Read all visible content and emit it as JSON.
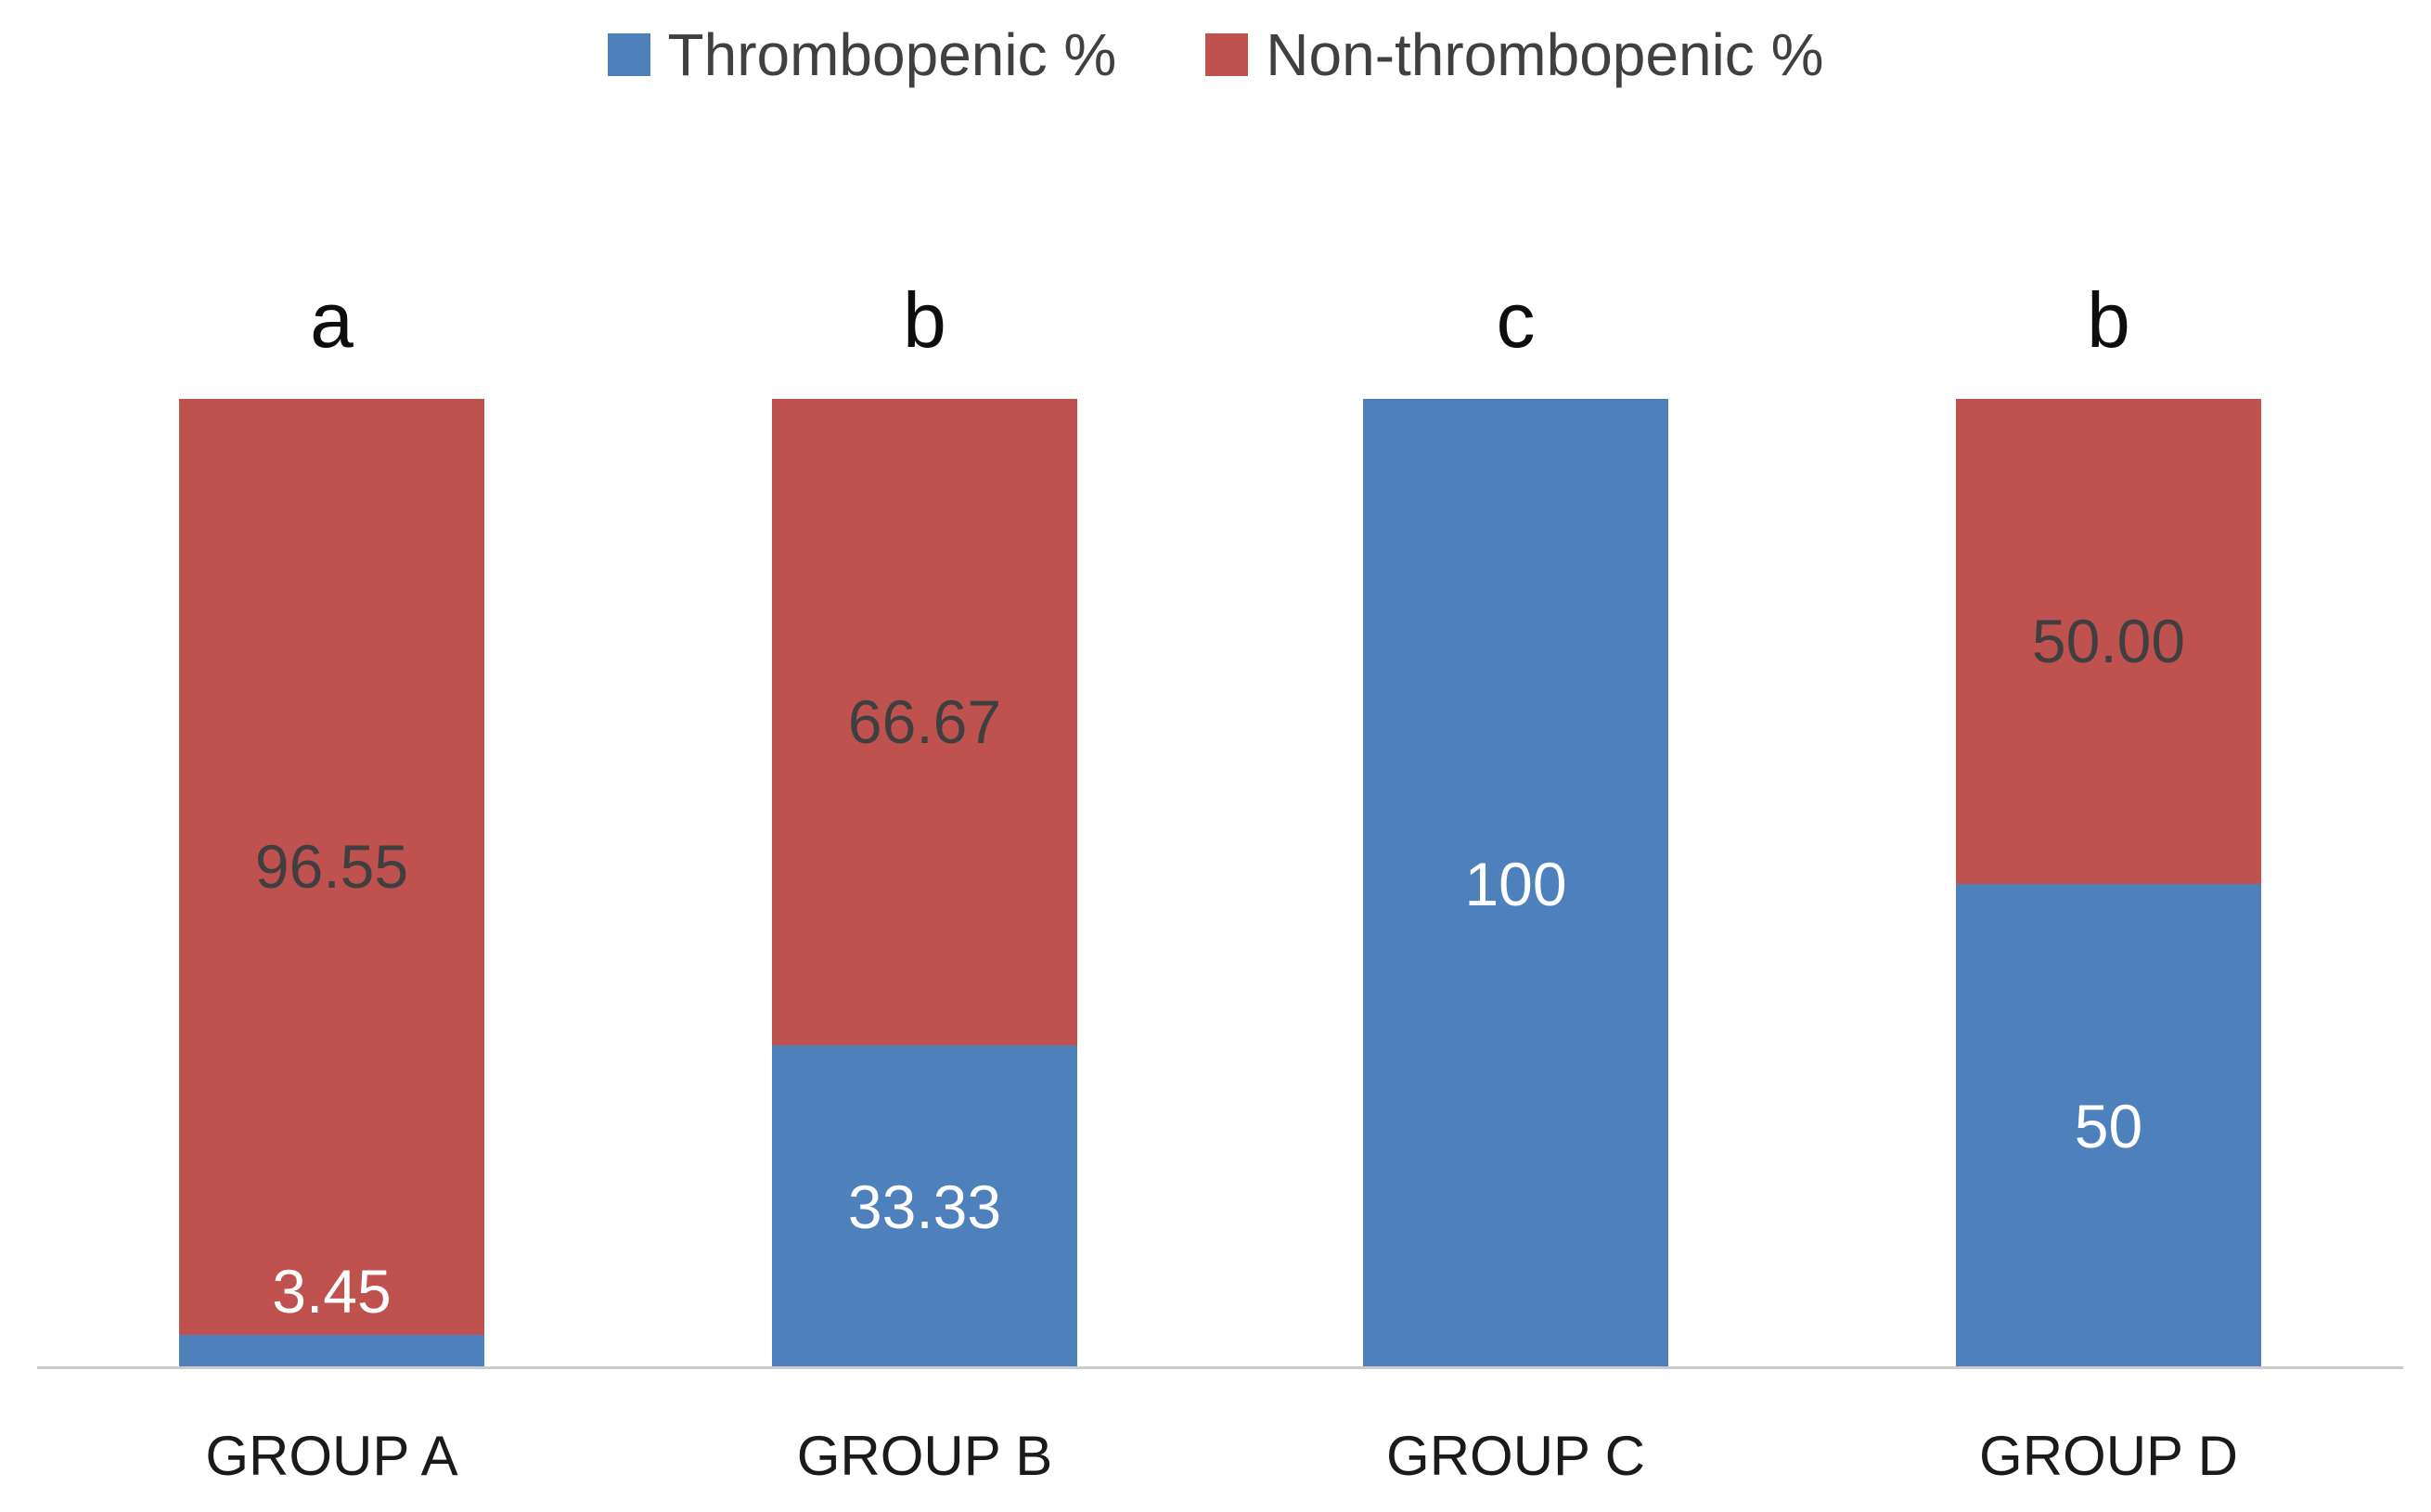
{
  "legend": {
    "items": [
      {
        "label": "Thrombopenic %",
        "color": "#4E81BC"
      },
      {
        "label": "Non-thrombopenic %",
        "color": "#BF514E"
      }
    ]
  },
  "colors": {
    "thrombopenic": "#4E81BC",
    "non_thrombopenic": "#BF514E",
    "axis_line": "#CBCBCB",
    "dark_label": "#3F3F3F",
    "light_label": "#FFFFFF"
  },
  "groups": [
    {
      "name": "GROUP A",
      "letter": "a",
      "thr_pct": 3.45,
      "non_pct": 96.55,
      "thr_label": "3.45",
      "non_label": "96.55"
    },
    {
      "name": "GROUP B",
      "letter": "b",
      "thr_pct": 33.33,
      "non_pct": 66.67,
      "thr_label": "33.33",
      "non_label": "66.67"
    },
    {
      "name": "GROUP C",
      "letter": "c",
      "thr_pct": 100,
      "non_pct": 0,
      "thr_label": "100",
      "non_label": ""
    },
    {
      "name": "GROUP D",
      "letter": "b",
      "thr_pct": 50,
      "non_pct": 50,
      "thr_label": "50",
      "non_label": "50.00"
    }
  ],
  "chart_data": {
    "type": "bar",
    "subtype": "100%-stacked-column",
    "title": "",
    "categories": [
      "GROUP A",
      "GROUP B",
      "GROUP C",
      "GROUP D"
    ],
    "series": [
      {
        "name": "Thrombopenic %",
        "color": "#4E81BC",
        "values": [
          3.45,
          33.33,
          100,
          50
        ]
      },
      {
        "name": "Non-thrombopenic %",
        "color": "#BF514E",
        "values": [
          96.55,
          66.67,
          0,
          50
        ]
      }
    ],
    "data_labels": {
      "thrombopenic": [
        "3.45",
        "33.33",
        "100",
        "50"
      ],
      "non_thrombopenic": [
        "96.55",
        "66.67",
        "",
        "50.00"
      ]
    },
    "bar_letter_annotations": [
      "a",
      "b",
      "c",
      "b"
    ],
    "ylim": [
      0,
      100
    ],
    "grid": false,
    "legend_position": "top",
    "xlabel": "",
    "ylabel": ""
  }
}
